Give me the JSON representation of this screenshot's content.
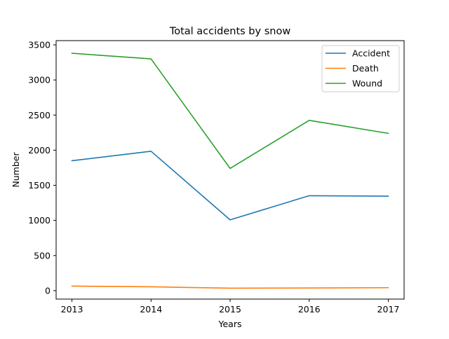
{
  "chart_data": {
    "type": "line",
    "title": "Total accidents by snow",
    "xlabel": "Years",
    "ylabel": "Number",
    "x": [
      2013,
      2014,
      2015,
      2016,
      2017
    ],
    "x_tick_labels": [
      "2013",
      "2014",
      "2015",
      "2016",
      "2017"
    ],
    "y_ticks": [
      0,
      500,
      1000,
      1500,
      2000,
      2500,
      3000,
      3500
    ],
    "y_tick_labels": [
      "0",
      "500",
      "1000",
      "1500",
      "2000",
      "2500",
      "3000",
      "3500"
    ],
    "ylim": [
      -120,
      3560
    ],
    "xlim": [
      2012.8,
      2017.2
    ],
    "grid": false,
    "legend_position": "upper right",
    "series": [
      {
        "name": "Accident",
        "color": "#1f77b4",
        "values": [
          1850,
          1985,
          1008,
          1352,
          1345
        ]
      },
      {
        "name": "Death",
        "color": "#ff7f0e",
        "values": [
          65,
          55,
          35,
          38,
          42
        ]
      },
      {
        "name": "Wound",
        "color": "#2ca02c",
        "values": [
          3380,
          3300,
          1740,
          2425,
          2240
        ]
      }
    ]
  }
}
